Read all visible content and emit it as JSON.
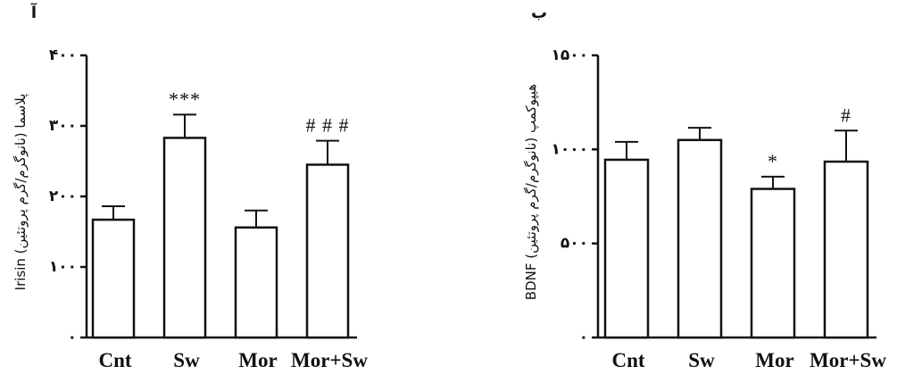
{
  "chart_data": [
    {
      "type": "bar",
      "panel_label": "آ",
      "ylabel": "Irisin پلاسما (نانوگرم/گرم پروتئین)",
      "categories": [
        "Cnt",
        "Sw",
        "Mor",
        "Mor+Sw"
      ],
      "values": [
        167,
        283,
        156,
        245
      ],
      "errors": [
        19,
        33,
        24,
        34
      ],
      "significance": [
        "",
        "***",
        "",
        "# # #"
      ],
      "ylim": [
        0,
        400
      ],
      "yticks": [
        0,
        100,
        200,
        300,
        400
      ],
      "ytick_labels": [
        "۰",
        "۱۰۰",
        "۲۰۰",
        "۳۰۰",
        "۴۰۰"
      ],
      "grid": false
    },
    {
      "type": "bar",
      "panel_label": "ب",
      "ylabel": "BDNF هیپوکمپ (نانوگرم/گرم پروتئین)",
      "categories": [
        "Cnt",
        "Sw",
        "Mor",
        "Mor+Sw"
      ],
      "values": [
        945,
        1050,
        790,
        935
      ],
      "errors": [
        95,
        65,
        65,
        165
      ],
      "significance": [
        "",
        "",
        "*",
        "#"
      ],
      "ylim": [
        0,
        1500
      ],
      "yticks": [
        0,
        500,
        1000,
        1500
      ],
      "ytick_labels": [
        "۰",
        "۵۰۰",
        "۱۰۰۰",
        "۱۵۰۰"
      ],
      "grid": false
    }
  ]
}
